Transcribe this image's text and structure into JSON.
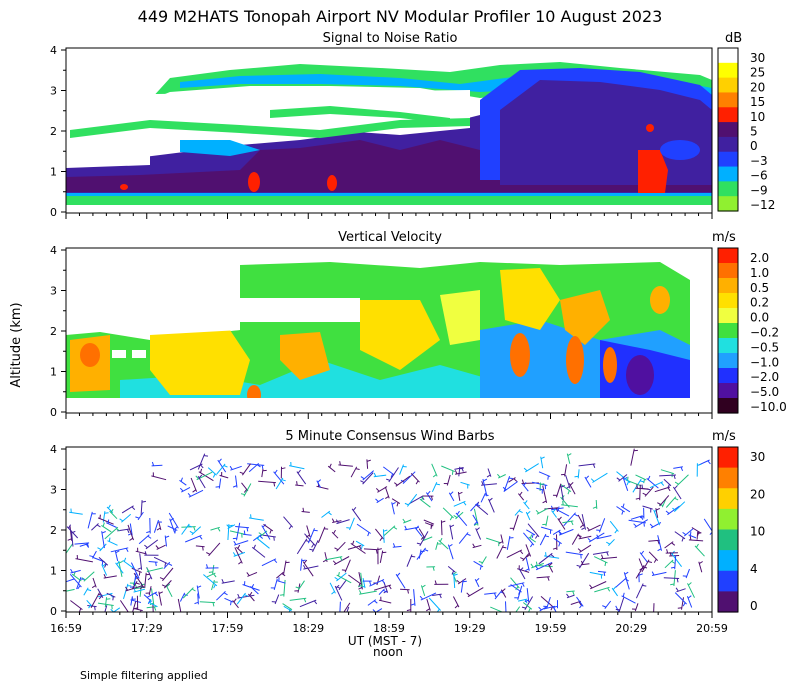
{
  "title": "449 M2HATS Tonopah Airport NV Modular Profiler 10 August 2023",
  "y_axis_label": "Altitude (km)",
  "x_axis_label": "UT  (MST - 7)",
  "x_axis_sublabel": "noon",
  "footnote": "Simple filtering applied",
  "colors": {
    "text": "#000000",
    "axis": "#000000",
    "background": "#ffffff"
  },
  "chart_data": [
    {
      "type": "heatmap",
      "title": "Signal to Noise Ratio",
      "colorbar_unit": "dB",
      "colorbar_labels": [
        "30",
        "25",
        "20",
        "15",
        "10",
        "5",
        "0",
        "−3",
        "−6",
        "−9",
        "−12"
      ],
      "colorbar_colors": [
        "#ffffff",
        "#ffff00",
        "#ffd000",
        "#ff8000",
        "#ff2000",
        "#501070",
        "#4020a0",
        "#2040ff",
        "#00b0ff",
        "#30e060",
        "#90f030"
      ],
      "x_tick_labels": [
        "16:59",
        "17:29",
        "17:59",
        "18:29",
        "18:59",
        "19:29",
        "19:59",
        "20:29",
        "20:59"
      ],
      "y_tick_labels": [
        "0",
        "1",
        "2",
        "3",
        "4"
      ],
      "ylim": [
        0,
        4
      ],
      "xlabel": "UT",
      "ylabel": "Altitude (km)"
    },
    {
      "type": "heatmap",
      "title": "Vertical Velocity",
      "colorbar_unit": "m/s",
      "colorbar_labels": [
        "2.0",
        "1.0",
        "0.5",
        "0.2",
        "0.0",
        "−0.2",
        "−0.5",
        "−1.0",
        "−2.0",
        "−5.0",
        "−10.0"
      ],
      "colorbar_colors": [
        "#ff2000",
        "#ff7000",
        "#ffb000",
        "#ffe000",
        "#f0ff40",
        "#40e040",
        "#20e0e0",
        "#20a0ff",
        "#2030ff",
        "#5010a0",
        "#300020"
      ],
      "x_tick_labels": [
        "16:59",
        "17:29",
        "17:59",
        "18:29",
        "18:59",
        "19:29",
        "19:59",
        "20:29",
        "20:59"
      ],
      "y_tick_labels": [
        "0",
        "1",
        "2",
        "3",
        "4"
      ],
      "ylim": [
        0,
        4
      ],
      "xlabel": "UT",
      "ylabel": "Altitude (km)"
    },
    {
      "type": "scatter",
      "title": "5 Minute Consensus Wind Barbs",
      "colorbar_unit": "m/s",
      "colorbar_labels": [
        "30",
        "20",
        "10",
        "4",
        "0"
      ],
      "colorbar_colors": [
        "#ff2000",
        "#ff8000",
        "#ffd000",
        "#90f030",
        "#20c080",
        "#00b0ff",
        "#2040ff",
        "#501070"
      ],
      "x_tick_labels": [
        "16:59",
        "17:29",
        "17:59",
        "18:29",
        "18:59",
        "19:29",
        "19:59",
        "20:29",
        "20:59"
      ],
      "y_tick_labels": [
        "0",
        "1",
        "2",
        "3",
        "4"
      ],
      "ylim": [
        0,
        4
      ],
      "xlabel": "UT",
      "ylabel": "Altitude (km)"
    }
  ]
}
